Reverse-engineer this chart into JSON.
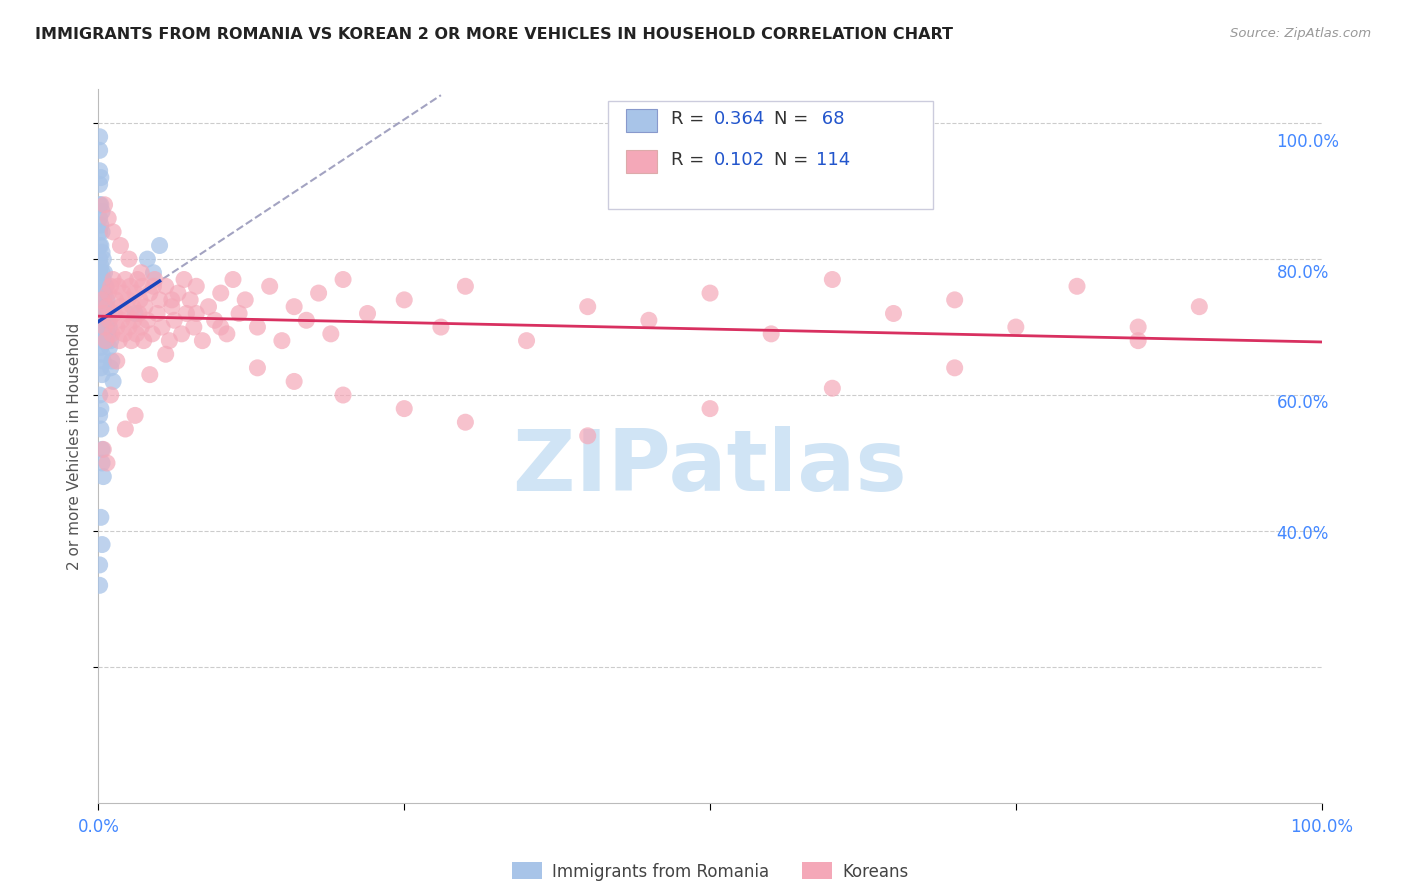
{
  "title": "IMMIGRANTS FROM ROMANIA VS KOREAN 2 OR MORE VEHICLES IN HOUSEHOLD CORRELATION CHART",
  "source": "Source: ZipAtlas.com",
  "ylabel": "2 or more Vehicles in Household",
  "xmin": 0.0,
  "xmax": 1.0,
  "ymin": 0.0,
  "ymax": 1.05,
  "romania_R": 0.364,
  "romania_N": 68,
  "korean_R": 0.102,
  "korean_N": 114,
  "romania_color": "#a8c4e8",
  "korean_color": "#f4a8b8",
  "romania_line_color": "#1a44bb",
  "korean_line_color": "#d83060",
  "dashed_line_color": "#9999bb",
  "background_color": "#ffffff",
  "grid_color": "#cccccc",
  "title_color": "#222222",
  "source_color": "#999999",
  "right_axis_color": "#4488ff",
  "bottom_axis_color": "#4488ff",
  "label_color": "#555555",
  "legend_value_color": "#2255cc",
  "watermark_color": "#d0e4f5",
  "legend_box_color": "#ccccdd",
  "romania_scatter_x": [
    0.001,
    0.001,
    0.001,
    0.001,
    0.001,
    0.001,
    0.001,
    0.001,
    0.001,
    0.001,
    0.002,
    0.002,
    0.002,
    0.002,
    0.002,
    0.002,
    0.002,
    0.002,
    0.002,
    0.002,
    0.003,
    0.003,
    0.003,
    0.003,
    0.003,
    0.003,
    0.003,
    0.003,
    0.003,
    0.004,
    0.004,
    0.004,
    0.004,
    0.004,
    0.004,
    0.005,
    0.005,
    0.005,
    0.005,
    0.006,
    0.006,
    0.006,
    0.007,
    0.007,
    0.007,
    0.008,
    0.008,
    0.009,
    0.009,
    0.01,
    0.01,
    0.011,
    0.012,
    0.001,
    0.001,
    0.002,
    0.002,
    0.003,
    0.003,
    0.004,
    0.001,
    0.001,
    0.002,
    0.003,
    0.03,
    0.04,
    0.045,
    0.05
  ],
  "romania_scatter_y": [
    0.98,
    0.96,
    0.93,
    0.91,
    0.88,
    0.86,
    0.84,
    0.82,
    0.8,
    0.78,
    0.92,
    0.88,
    0.85,
    0.82,
    0.79,
    0.76,
    0.73,
    0.7,
    0.67,
    0.64,
    0.87,
    0.84,
    0.81,
    0.78,
    0.75,
    0.72,
    0.69,
    0.66,
    0.63,
    0.8,
    0.77,
    0.74,
    0.71,
    0.68,
    0.65,
    0.78,
    0.75,
    0.72,
    0.69,
    0.76,
    0.73,
    0.7,
    0.74,
    0.71,
    0.68,
    0.72,
    0.69,
    0.7,
    0.67,
    0.68,
    0.64,
    0.65,
    0.62,
    0.6,
    0.57,
    0.58,
    0.55,
    0.52,
    0.5,
    0.48,
    0.35,
    0.32,
    0.42,
    0.38,
    0.72,
    0.8,
    0.78,
    0.82
  ],
  "korean_scatter_x": [
    0.003,
    0.004,
    0.005,
    0.006,
    0.007,
    0.008,
    0.009,
    0.01,
    0.011,
    0.012,
    0.013,
    0.014,
    0.015,
    0.016,
    0.017,
    0.018,
    0.019,
    0.02,
    0.021,
    0.022,
    0.023,
    0.024,
    0.025,
    0.026,
    0.027,
    0.028,
    0.029,
    0.03,
    0.031,
    0.032,
    0.033,
    0.034,
    0.035,
    0.036,
    0.037,
    0.038,
    0.04,
    0.042,
    0.044,
    0.046,
    0.048,
    0.05,
    0.052,
    0.055,
    0.058,
    0.06,
    0.062,
    0.065,
    0.068,
    0.07,
    0.072,
    0.075,
    0.078,
    0.08,
    0.085,
    0.09,
    0.095,
    0.1,
    0.105,
    0.11,
    0.115,
    0.12,
    0.13,
    0.14,
    0.15,
    0.16,
    0.17,
    0.18,
    0.19,
    0.2,
    0.22,
    0.25,
    0.28,
    0.3,
    0.35,
    0.4,
    0.45,
    0.5,
    0.55,
    0.6,
    0.65,
    0.7,
    0.75,
    0.8,
    0.85,
    0.9,
    0.005,
    0.008,
    0.012,
    0.018,
    0.025,
    0.035,
    0.045,
    0.06,
    0.08,
    0.1,
    0.13,
    0.16,
    0.2,
    0.25,
    0.3,
    0.4,
    0.5,
    0.6,
    0.7,
    0.85,
    0.004,
    0.007,
    0.01,
    0.015,
    0.022,
    0.03,
    0.042,
    0.055
  ],
  "korean_scatter_y": [
    0.74,
    0.72,
    0.7,
    0.68,
    0.73,
    0.75,
    0.71,
    0.76,
    0.69,
    0.77,
    0.72,
    0.74,
    0.7,
    0.76,
    0.68,
    0.73,
    0.71,
    0.75,
    0.69,
    0.77,
    0.72,
    0.74,
    0.7,
    0.76,
    0.68,
    0.73,
    0.71,
    0.75,
    0.69,
    0.77,
    0.72,
    0.74,
    0.7,
    0.76,
    0.68,
    0.73,
    0.71,
    0.75,
    0.69,
    0.77,
    0.72,
    0.74,
    0.7,
    0.76,
    0.68,
    0.73,
    0.71,
    0.75,
    0.69,
    0.77,
    0.72,
    0.74,
    0.7,
    0.76,
    0.68,
    0.73,
    0.71,
    0.75,
    0.69,
    0.77,
    0.72,
    0.74,
    0.7,
    0.76,
    0.68,
    0.73,
    0.71,
    0.75,
    0.69,
    0.77,
    0.72,
    0.74,
    0.7,
    0.76,
    0.68,
    0.73,
    0.71,
    0.75,
    0.69,
    0.77,
    0.72,
    0.74,
    0.7,
    0.76,
    0.68,
    0.73,
    0.88,
    0.86,
    0.84,
    0.82,
    0.8,
    0.78,
    0.76,
    0.74,
    0.72,
    0.7,
    0.64,
    0.62,
    0.6,
    0.58,
    0.56,
    0.54,
    0.58,
    0.61,
    0.64,
    0.7,
    0.52,
    0.5,
    0.6,
    0.65,
    0.55,
    0.57,
    0.63,
    0.66
  ]
}
